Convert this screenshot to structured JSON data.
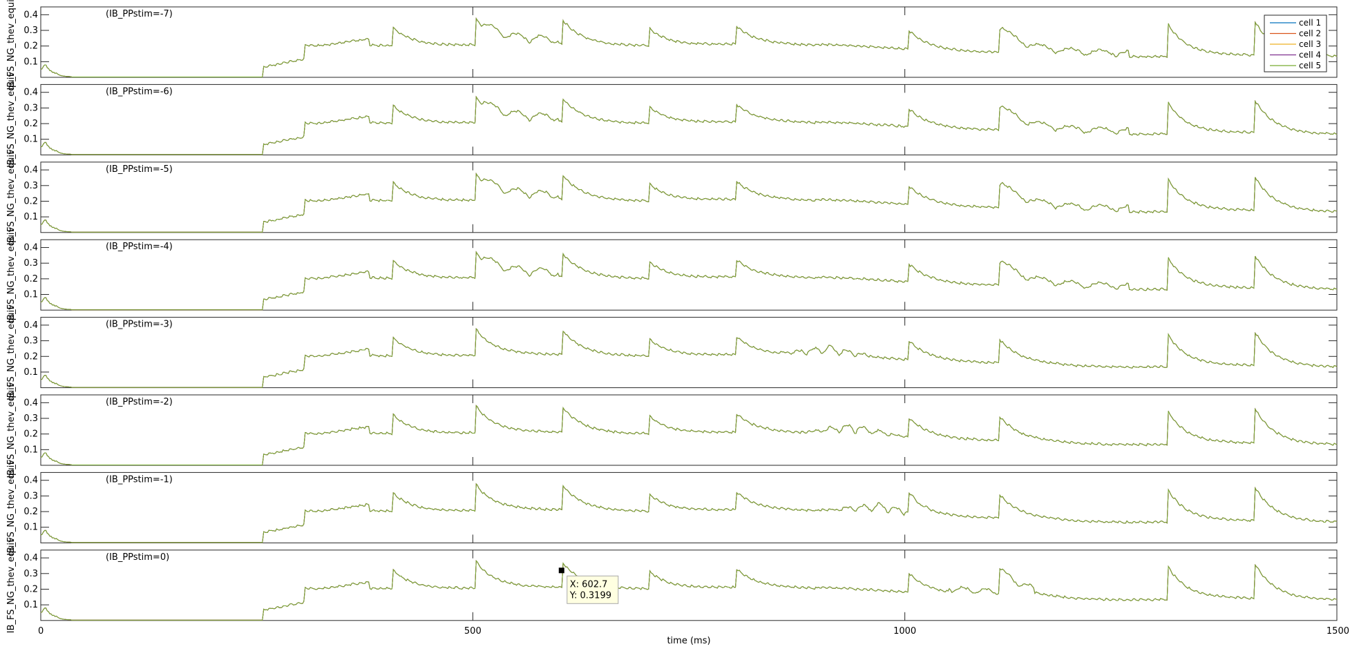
{
  "chart_data": {
    "type": "line",
    "xlabel": "time (ms)",
    "xlim": [
      0,
      1500
    ],
    "x_ticks": [
      "0",
      "500",
      "1000",
      "1500"
    ],
    "ylim": [
      0,
      0.45
    ],
    "y_ticks": [
      "0.1",
      "0.2",
      "0.3",
      "0.4"
    ],
    "ylabels": [
      "IB_FS_NG_thev_equiv",
      "IB_FS_NG_thev_equiv",
      "IB_FS_NG_thev_equiv",
      "IB_FS_NG_thev_equiv",
      "IB_FS_NG_thev_equiv",
      "IB_FS_NG_thev_equiv",
      "IB_FS_NG_thev_equiv",
      "IB_FS_NG_thev_equiv"
    ],
    "legend": {
      "placement": "top-right",
      "entries": [
        {
          "name": "cell 1",
          "color": "#0072bd"
        },
        {
          "name": "cell 2",
          "color": "#d95319"
        },
        {
          "name": "cell 3",
          "color": "#edb120"
        },
        {
          "name": "cell 4",
          "color": "#7e2f8e"
        },
        {
          "name": "cell 5",
          "color": "#77ac30"
        }
      ]
    },
    "panels": [
      {
        "label": "(IB_PPstim=-7)",
        "stim": -7
      },
      {
        "label": "(IB_PPstim=-6)",
        "stim": -6
      },
      {
        "label": "(IB_PPstim=-5)",
        "stim": -5
      },
      {
        "label": "(IB_PPstim=-4)",
        "stim": -4
      },
      {
        "label": "(IB_PPstim=-3)",
        "stim": -3
      },
      {
        "label": "(IB_PPstim=-2)",
        "stim": -2
      },
      {
        "label": "(IB_PPstim=-1)",
        "stim": -1
      },
      {
        "label": "(IB_PPstim=0)",
        "stim": 0
      }
    ],
    "trace_shape": {
      "initial_peak": {
        "x": 5,
        "y": 0.07
      },
      "flat_until": 258,
      "ramp": {
        "x_start": 258,
        "x_end": 305,
        "y_start": 0.06,
        "y_end": 0.11
      },
      "baseline": 0.2,
      "late_baseline": 0.13,
      "peaks": [
        {
          "x": 305,
          "y": 0.2
        },
        {
          "x": 408,
          "y": 0.31
        },
        {
          "x": 503,
          "y": 0.37
        },
        {
          "x": 604,
          "y": 0.36
        },
        {
          "x": 705,
          "y": 0.3
        },
        {
          "x": 805,
          "y": 0.32
        },
        {
          "x": 1005,
          "y": 0.29
        },
        {
          "x": 1110,
          "y": 0.3
        },
        {
          "x": 1305,
          "y": 0.33
        },
        {
          "x": 1405,
          "y": 0.35
        }
      ]
    },
    "datatip": {
      "x_text": "X: 602.7",
      "y_text": "Y: 0.3199",
      "x": 602.7,
      "y": 0.3199,
      "panel": 7
    }
  }
}
